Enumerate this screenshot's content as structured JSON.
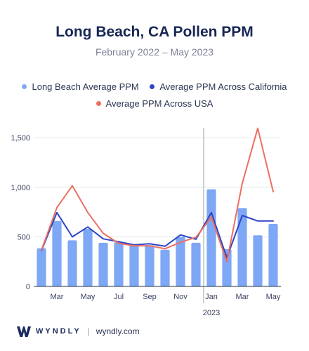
{
  "header": {
    "title": "Long Beach, CA Pollen PPM",
    "subtitle": "February 2022 – May 2023"
  },
  "legend": [
    {
      "label": "Long Beach Average PPM",
      "color": "#7ea7f5"
    },
    {
      "label": "Average PPM Across California",
      "color": "#2f45c4"
    },
    {
      "label": "Average PPM Across USA",
      "color": "#ec6f62"
    }
  ],
  "footer": {
    "brand": "WYNDLY",
    "separator": "|",
    "url": "wyndly.com"
  },
  "chart_data": {
    "type": "bar",
    "categories": [
      "Feb 2022",
      "Mar 2022",
      "Apr 2022",
      "May 2022",
      "Jun 2022",
      "Jul 2022",
      "Aug 2022",
      "Sep 2022",
      "Oct 2022",
      "Nov 2022",
      "Dec 2022",
      "Jan 2023",
      "Feb 2023",
      "Mar 2023",
      "Apr 2023",
      "May 2023"
    ],
    "tick_labels": [
      "",
      "Mar",
      "",
      "May",
      "",
      "Jul",
      "",
      "Sep",
      "",
      "Nov",
      "",
      "Jan",
      "",
      "Mar",
      "",
      "May"
    ],
    "year_label": "2023",
    "year_divider_index": 11,
    "series": [
      {
        "name": "Long Beach Average PPM",
        "kind": "bar",
        "color": "#7ea7f5",
        "values": [
          385,
          660,
          465,
          580,
          440,
          445,
          420,
          415,
          370,
          500,
          440,
          980,
          375,
          790,
          515,
          630
        ]
      },
      {
        "name": "Average PPM Across California",
        "kind": "line",
        "color": "#2f45c4",
        "values": [
          360,
          745,
          500,
          600,
          480,
          450,
          420,
          430,
          405,
          520,
          475,
          745,
          290,
          715,
          660,
          660
        ]
      },
      {
        "name": "Average PPM Across USA",
        "kind": "line",
        "color": "#ec6f62",
        "values": [
          365,
          795,
          1015,
          745,
          535,
          435,
          410,
          410,
          380,
          445,
          495,
          700,
          250,
          1040,
          1595,
          955
        ]
      }
    ],
    "yticks": [
      0,
      500,
      1000,
      1500
    ],
    "ytick_labels": [
      "0",
      "500",
      "1,000",
      "1,500"
    ],
    "ylim": [
      0,
      1600
    ],
    "grid": true,
    "legend_position": "top"
  }
}
